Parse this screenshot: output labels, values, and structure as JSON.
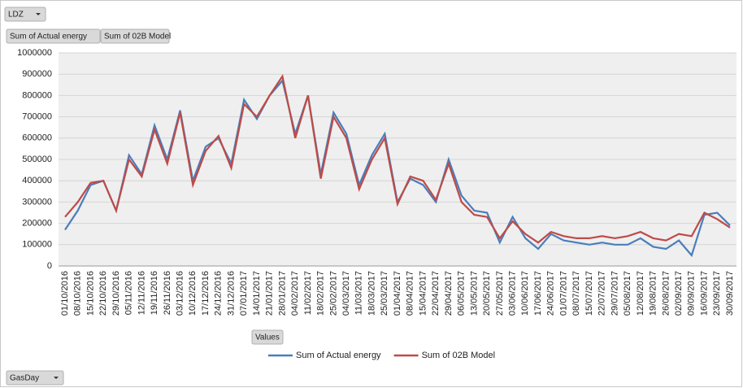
{
  "filter_button": "LDZ",
  "value_buttons": [
    "Sum of Actual energy",
    "Sum of 02B Model"
  ],
  "values_button": "Values",
  "axis_button": "GasDay",
  "chart_data": {
    "type": "line",
    "categories": [
      "01/10/2016",
      "08/10/2016",
      "15/10/2016",
      "22/10/2016",
      "29/10/2016",
      "05/11/2016",
      "12/11/2016",
      "19/11/2016",
      "26/11/2016",
      "03/12/2016",
      "10/12/2016",
      "17/12/2016",
      "24/12/2016",
      "31/12/2016",
      "07/01/2017",
      "14/01/2017",
      "21/01/2017",
      "28/01/2017",
      "04/02/2017",
      "11/02/2017",
      "18/02/2017",
      "25/02/2017",
      "04/03/2017",
      "11/03/2017",
      "18/03/2017",
      "25/03/2017",
      "01/04/2017",
      "08/04/2017",
      "15/04/2017",
      "22/04/2017",
      "29/04/2017",
      "06/05/2017",
      "13/05/2017",
      "20/05/2017",
      "27/05/2017",
      "03/06/2017",
      "10/06/2017",
      "17/06/2017",
      "24/06/2017",
      "01/07/2017",
      "08/07/2017",
      "15/07/2017",
      "22/07/2017",
      "29/07/2017",
      "05/08/2017",
      "12/08/2017",
      "19/08/2017",
      "26/08/2017",
      "02/09/2017",
      "09/09/2017",
      "16/09/2017",
      "23/09/2017",
      "30/09/2017"
    ],
    "series": [
      {
        "name": "Sum of Actual energy",
        "color": "#4a7ebb",
        "values": [
          170000,
          260000,
          380000,
          400000,
          260000,
          520000,
          430000,
          660000,
          500000,
          730000,
          400000,
          560000,
          600000,
          480000,
          780000,
          690000,
          800000,
          870000,
          620000,
          800000,
          430000,
          720000,
          620000,
          380000,
          520000,
          620000,
          300000,
          410000,
          380000,
          300000,
          500000,
          330000,
          260000,
          250000,
          110000,
          230000,
          130000,
          80000,
          150000,
          120000,
          110000,
          100000,
          110000,
          100000,
          100000,
          130000,
          90000,
          80000,
          120000,
          50000,
          240000,
          250000,
          190000
        ]
      },
      {
        "name": "Sum of 02B Model",
        "color": "#be4b48",
        "values": [
          230000,
          300000,
          390000,
          400000,
          260000,
          500000,
          420000,
          640000,
          480000,
          720000,
          380000,
          540000,
          610000,
          460000,
          760000,
          700000,
          800000,
          890000,
          600000,
          800000,
          410000,
          700000,
          600000,
          360000,
          500000,
          600000,
          290000,
          420000,
          400000,
          310000,
          480000,
          300000,
          240000,
          230000,
          130000,
          210000,
          150000,
          110000,
          160000,
          140000,
          130000,
          130000,
          140000,
          130000,
          140000,
          160000,
          130000,
          120000,
          150000,
          140000,
          250000,
          220000,
          180000
        ]
      }
    ],
    "ylim": [
      0,
      1000000
    ],
    "yticks": [
      0,
      100000,
      200000,
      300000,
      400000,
      500000,
      600000,
      700000,
      800000,
      900000,
      1000000
    ],
    "grid": true,
    "legend": "bottom"
  }
}
